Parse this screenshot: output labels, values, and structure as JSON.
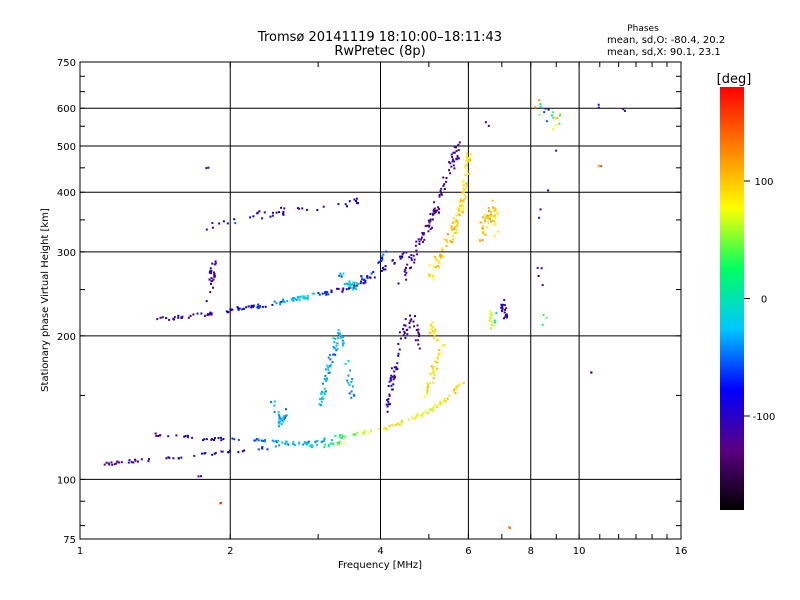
{
  "chart_data": {
    "type": "scatter",
    "title": "Tromsø 20141119 18:10:00–18:11:43",
    "subtitle": "RwPretec (8p)",
    "xlabel": "Frequency [MHz]",
    "ylabel": "Stationary phase Virtual Height [km]",
    "x_scale": "log",
    "y_scale": "log",
    "xlim": [
      1,
      16
    ],
    "ylim": [
      75,
      750
    ],
    "x_ticks": [
      {
        "value": 1,
        "label": "1"
      },
      {
        "value": 2,
        "label": "2"
      },
      {
        "value": 4,
        "label": "4"
      },
      {
        "value": 6,
        "label": "6"
      },
      {
        "value": 8,
        "label": "8"
      },
      {
        "value": 10,
        "label": "10"
      },
      {
        "value": 16,
        "label": "16"
      }
    ],
    "y_ticks": [
      {
        "value": 75,
        "label": "75"
      },
      {
        "value": 100,
        "label": "100"
      },
      {
        "value": 200,
        "label": "200"
      },
      {
        "value": 300,
        "label": "300"
      },
      {
        "value": 400,
        "label": "400"
      },
      {
        "value": 500,
        "label": "500"
      },
      {
        "value": 600,
        "label": "600"
      },
      {
        "value": 750,
        "label": "750"
      }
    ],
    "grid": true,
    "phase_stats": {
      "heading": "Phases",
      "line_o": "mean, sd,O: -80.4, 20.2",
      "line_x": "mean, sd,X: 90.1, 23.1"
    },
    "colorbar": {
      "label": "[deg]",
      "range": [
        -180,
        180
      ],
      "ticks": [
        {
          "value": 100,
          "label": "100"
        },
        {
          "value": 0,
          "label": "0"
        },
        {
          "value": -100,
          "label": "-100"
        }
      ],
      "stops": [
        "#000000",
        "#5a0080",
        "#0000ff",
        "#00c8ff",
        "#00ff60",
        "#ffff00",
        "#ff8000",
        "#ff0000"
      ]
    },
    "traces": [
      {
        "name": "",
        "points": [
          [
            1.42,
            218,
            -110
          ],
          [
            1.6,
            220,
            -105
          ],
          [
            1.8,
            224,
            -95
          ],
          [
            2.0,
            228,
            -90
          ],
          [
            2.3,
            232,
            -75
          ],
          [
            2.6,
            238,
            -40
          ],
          [
            2.8,
            242,
            -10
          ],
          [
            3.0,
            246,
            -50
          ],
          [
            3.3,
            250,
            -100
          ],
          [
            3.6,
            258,
            -110
          ],
          [
            3.9,
            270,
            -100
          ],
          [
            4.2,
            285,
            -95
          ],
          [
            4.5,
            300,
            -105
          ]
        ],
        "spread": 4,
        "n": 150
      },
      {
        "name": "",
        "points": [
          [
            1.1,
            108,
            -110
          ],
          [
            1.3,
            110,
            -110
          ],
          [
            1.6,
            112,
            -100
          ],
          [
            2.0,
            115,
            -90
          ],
          [
            2.5,
            118,
            -50
          ],
          [
            3.0,
            121,
            -30
          ],
          [
            3.5,
            125,
            50
          ],
          [
            4.0,
            128,
            90
          ],
          [
            4.5,
            133,
            75
          ],
          [
            5.0,
            140,
            70
          ],
          [
            5.4,
            148,
            90
          ],
          [
            5.8,
            160,
            95
          ]
        ],
        "spread": 3,
        "n": 150
      },
      {
        "name": "",
        "points": [
          [
            1.4,
            125,
            -110
          ],
          [
            1.8,
            122,
            -100
          ],
          [
            2.2,
            122,
            -60
          ],
          [
            2.6,
            120,
            -20
          ],
          [
            3.0,
            118,
            -20
          ],
          [
            3.4,
            120,
            70
          ]
        ],
        "spread": 3,
        "n": 70
      },
      {
        "name": "",
        "points": [
          [
            4.3,
            250,
            -110
          ],
          [
            4.6,
            290,
            -110
          ],
          [
            4.9,
            330,
            -120
          ],
          [
            5.2,
            380,
            -120
          ],
          [
            5.5,
            450,
            -115
          ],
          [
            5.7,
            500,
            -110
          ]
        ],
        "spread": 15,
        "n": 100
      },
      {
        "name": "",
        "points": [
          [
            5.0,
            270,
            90
          ],
          [
            5.3,
            300,
            100
          ],
          [
            5.6,
            340,
            105
          ],
          [
            5.8,
            380,
            90
          ],
          [
            5.9,
            440,
            80
          ],
          [
            6.0,
            490,
            95
          ]
        ],
        "spread": 15,
        "n": 110
      },
      {
        "name": "",
        "points": [
          [
            6.3,
            330,
            100
          ],
          [
            6.5,
            350,
            100
          ],
          [
            6.7,
            380,
            110
          ],
          [
            6.8,
            340,
            90
          ]
        ],
        "spread": 18,
        "n": 55
      },
      {
        "name": "",
        "points": [
          [
            3.0,
            140,
            -20
          ],
          [
            3.1,
            165,
            -30
          ],
          [
            3.2,
            185,
            -40
          ],
          [
            3.3,
            205,
            -20
          ],
          [
            3.5,
            150,
            -40
          ]
        ],
        "spread": 12,
        "n": 80
      },
      {
        "name": "",
        "points": [
          [
            4.1,
            140,
            -105
          ],
          [
            4.2,
            160,
            -100
          ],
          [
            4.3,
            180,
            -90
          ],
          [
            4.4,
            200,
            -100
          ],
          [
            4.6,
            220,
            -110
          ],
          [
            4.8,
            190,
            -115
          ]
        ],
        "spread": 12,
        "n": 70
      },
      {
        "name": "",
        "points": [
          [
            4.9,
            150,
            80
          ],
          [
            5.1,
            170,
            90
          ],
          [
            5.3,
            190,
            85
          ],
          [
            5.0,
            210,
            95
          ]
        ],
        "spread": 10,
        "n": 50
      },
      {
        "name": "",
        "points": [
          [
            2.4,
            150,
            -40
          ],
          [
            2.5,
            130,
            -20
          ],
          [
            2.6,
            140,
            -50
          ]
        ],
        "spread": 6,
        "n": 25
      },
      {
        "name": "",
        "points": [
          [
            1.75,
            340,
            -100
          ],
          [
            2.0,
            345,
            -60
          ],
          [
            2.3,
            360,
            -90
          ],
          [
            2.6,
            370,
            -95
          ],
          [
            3.4,
            380,
            -90
          ],
          [
            3.6,
            390,
            -95
          ]
        ],
        "spread": 8,
        "n": 40
      },
      {
        "name": "",
        "points": [
          [
            1.8,
            260,
            -110
          ],
          [
            1.85,
            285,
            -110
          ],
          [
            1.8,
            240,
            -100
          ]
        ],
        "spread": 8,
        "n": 25
      },
      {
        "name": "",
        "points": [
          [
            3.3,
            270,
            -40
          ],
          [
            3.5,
            255,
            -10
          ],
          [
            3.7,
            265,
            -60
          ],
          [
            3.9,
            280,
            -80
          ],
          [
            4.1,
            300,
            -40
          ]
        ],
        "spread": 8,
        "n": 50
      },
      {
        "name": "",
        "points": [
          [
            6.6,
            225,
            60
          ],
          [
            6.7,
            210,
            75
          ],
          [
            7.0,
            235,
            -110
          ],
          [
            7.1,
            220,
            -100
          ]
        ],
        "spread": 7,
        "n": 35
      },
      {
        "name": "",
        "points": [
          [
            8.2,
            610,
            140
          ],
          [
            8.6,
            590,
            -110
          ],
          [
            8.9,
            560,
            120
          ],
          [
            9.3,
            580,
            -90
          ],
          [
            8.1,
            320,
            -110
          ],
          [
            8.4,
            250,
            -100
          ],
          [
            8.5,
            200,
            100
          ]
        ],
        "spread": 15,
        "n": 30
      },
      {
        "name": "",
        "points": [
          [
            10.8,
            610,
            -100
          ],
          [
            12.3,
            600,
            -90
          ],
          [
            11.0,
            460,
            140
          ],
          [
            10.5,
            170,
            -120
          ],
          [
            6.5,
            560,
            -100
          ],
          [
            7.2,
            80,
            150
          ],
          [
            1.9,
            90,
            160
          ],
          [
            1.73,
            102,
            -110
          ],
          [
            1.78,
            455,
            -100
          ]
        ],
        "spread": 5,
        "n": 18
      }
    ]
  }
}
